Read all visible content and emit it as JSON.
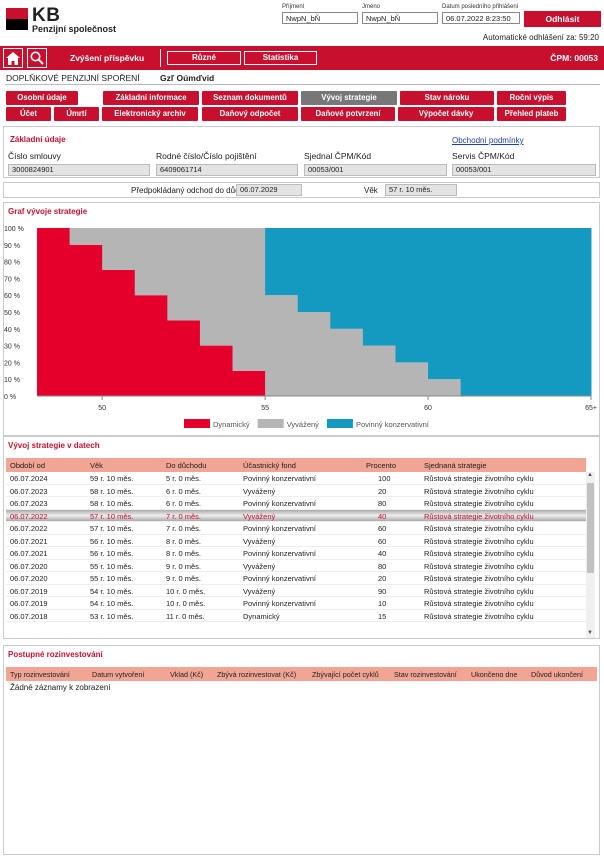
{
  "header": {
    "logo": "KB",
    "logo_sub": "Penzijní společnost",
    "surname_label": "Příjmení",
    "surname": "NwpN_bŇ",
    "name_label": "Jméno",
    "name": "NwpN_bŇ",
    "last_login_label": "Datum posledního přihlášení",
    "last_login": "06.07.2022 8:23:50",
    "logout": "Odhlásit",
    "auto_logout": "Automatické odhlášení za: 59:20"
  },
  "menu": {
    "increase": "Zvýšení příspěvku",
    "misc": "Různé",
    "stats": "Statistika",
    "cpm": "ČPM: 00053"
  },
  "contract": {
    "type": "DOPLŇKOVÉ PENZIJNÍ SPOŘENÍ",
    "holder": "Gzľ Oúmďvid"
  },
  "tabs_row1": [
    "Osobní údaje",
    "Základní informace",
    "Seznam dokumentů",
    "Vývoj strategie",
    "Stav nároku",
    "Roční výpis"
  ],
  "tabs_row2": [
    "Účet",
    "Úmrtí",
    "Elektronický archiv",
    "Daňový odpočet",
    "Daňové potvrzení",
    "Výpočet dávky",
    "Přehled plateb"
  ],
  "basic": {
    "title": "Základní údaje",
    "terms_link": "Obchodní podmínky",
    "contract_no_label": "Číslo smlouvy",
    "contract_no": "3000824901",
    "birth_no_label": "Rodné číslo/Číslo pojištění",
    "birth_no": "6409061714",
    "agreed_label": "Sjednal ČPM/Kód",
    "agreed": "00053/001",
    "service_label": "Servis ČPM/Kód",
    "service": "00053/001",
    "retire_label": "Předpokládaný odchod do důchodu",
    "retire": "06.07.2029",
    "age_label": "Věk",
    "age": "57 r. 10 měs."
  },
  "chart_title": "Graf vývoje strategie",
  "chart_data": {
    "type": "area",
    "x": [
      48,
      49,
      50,
      51,
      52,
      53,
      54,
      55,
      56,
      57,
      58,
      59,
      60,
      61,
      62,
      63,
      64,
      65
    ],
    "x_ticks": [
      "50",
      "55",
      "60",
      "65+"
    ],
    "y_ticks": [
      "100 %",
      "90 %",
      "80 %",
      "70 %",
      "60 %",
      "50 %",
      "40 %",
      "30 %",
      "20 %",
      "10 %",
      "0 %"
    ],
    "ylim": [
      0,
      100
    ],
    "series": [
      {
        "name": "Dynamický",
        "color": "#e4002b",
        "values": [
          100,
          90,
          75,
          60,
          45,
          30,
          15,
          0,
          0,
          0,
          0,
          0,
          0,
          0,
          0,
          0,
          0,
          0
        ]
      },
      {
        "name": "Vyvážený",
        "color": "#b5b5b5",
        "values": [
          0,
          10,
          25,
          40,
          55,
          70,
          85,
          60,
          50,
          40,
          30,
          20,
          10,
          0,
          0,
          0,
          0,
          0
        ]
      },
      {
        "name": "Povinný konzervativní",
        "color": "#1499c0",
        "values": [
          0,
          0,
          0,
          0,
          0,
          0,
          0,
          40,
          50,
          60,
          70,
          80,
          90,
          100,
          100,
          100,
          100,
          100
        ]
      }
    ]
  },
  "data_title": "Vývoj strategie v datech",
  "table": {
    "headers": [
      "Období od",
      "Věk",
      "Do důchodu",
      "Účastnický fond",
      "Procento",
      "Sjednaná strategie"
    ],
    "rows": [
      [
        "06.07.2024",
        "59 r. 10 měs.",
        "5 r. 0 měs.",
        "Povinný konzervativní",
        "100",
        "Růstová strategie životního cyklu"
      ],
      [
        "06.07.2023",
        "58 r. 10 měs.",
        "6 r. 0 měs.",
        "Vyvážený",
        "20",
        "Růstová strategie životního cyklu"
      ],
      [
        "06.07.2023",
        "58 r. 10 měs.",
        "6 r. 0 měs.",
        "Povinný konzervativní",
        "80",
        "Růstová strategie životního cyklu"
      ],
      [
        "06.07.2022",
        "57 r. 10 měs.",
        "7 r. 0 měs.",
        "Vyvážený",
        "40",
        "Růstová strategie životního cyklu"
      ],
      [
        "06.07.2022",
        "57 r. 10 měs.",
        "7 r. 0 měs.",
        "Povinný konzervativní",
        "60",
        "Růstová strategie životního cyklu"
      ],
      [
        "06.07.2021",
        "56 r. 10 měs.",
        "8 r. 0 měs.",
        "Vyvážený",
        "60",
        "Růstová strategie životního cyklu"
      ],
      [
        "06.07.2021",
        "56 r. 10 měs.",
        "8 r. 0 měs.",
        "Povinný konzervativní",
        "40",
        "Růstová strategie životního cyklu"
      ],
      [
        "06.07.2020",
        "55 r. 10 měs.",
        "9 r. 0 měs.",
        "Vyvážený",
        "80",
        "Růstová strategie životního cyklu"
      ],
      [
        "06.07.2020",
        "55 r. 10 měs.",
        "9 r. 0 měs.",
        "Povinný konzervativní",
        "20",
        "Růstová strategie životního cyklu"
      ],
      [
        "06.07.2019",
        "54 r. 10 měs.",
        "10 r. 0 měs.",
        "Vyvážený",
        "90",
        "Růstová strategie životního cyklu"
      ],
      [
        "06.07.2019",
        "54 r. 10 měs.",
        "10 r. 0 měs.",
        "Povinný konzervativní",
        "10",
        "Růstová strategie životního cyklu"
      ],
      [
        "06.07.2018",
        "53 r. 10 měs.",
        "11 r. 0 měs.",
        "Dynamický",
        "15",
        "Růstová strategie životního cyklu"
      ]
    ]
  },
  "reinvest": {
    "title": "Postupné rozinvestování",
    "headers": [
      "Typ rozinvestování",
      "Datum vytvoření",
      "Vklad (Kč)",
      "Zbývá rozinvestovat (Kč)",
      "Zbývající počet cyklů",
      "Stav rozinvestování",
      "Ukončeno dne",
      "Důvod ukončení"
    ],
    "empty": "Žádné záznamy k zobrazení"
  }
}
